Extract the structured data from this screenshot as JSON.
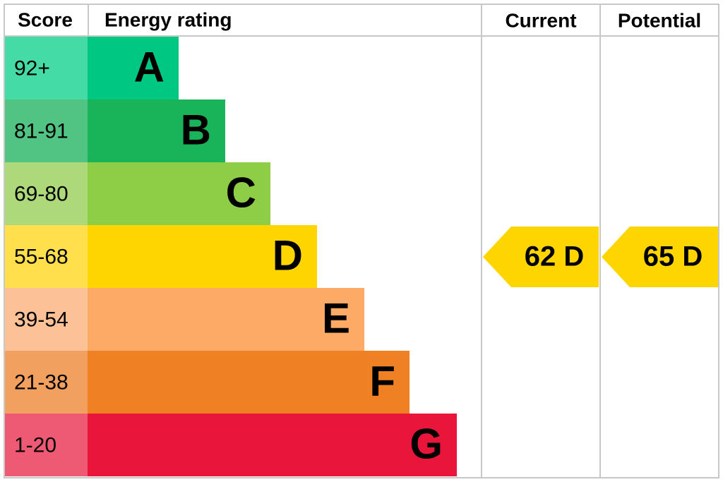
{
  "header": {
    "score": "Score",
    "rating": "Energy rating",
    "current": "Current",
    "potential": "Potential"
  },
  "bands": [
    {
      "score": "92+",
      "letter": "A",
      "color": "#00c781",
      "score_color": "#45dba6"
    },
    {
      "score": "81-91",
      "letter": "B",
      "color": "#19b459",
      "score_color": "#51c383"
    },
    {
      "score": "69-80",
      "letter": "C",
      "color": "#8dce46",
      "score_color": "#add97b"
    },
    {
      "score": "55-68",
      "letter": "D",
      "color": "#ffd500",
      "score_color": "#ffe04c"
    },
    {
      "score": "39-54",
      "letter": "E",
      "color": "#fcaa65",
      "score_color": "#fdc197"
    },
    {
      "score": "21-38",
      "letter": "F",
      "color": "#ef8023",
      "score_color": "#f2a060"
    },
    {
      "score": "1-20",
      "letter": "G",
      "color": "#e9153b",
      "score_color": "#ee5a74"
    }
  ],
  "current": {
    "label": "62 D",
    "color": "#ffd500"
  },
  "potential": {
    "label": "65 D",
    "color": "#ffd500"
  }
}
